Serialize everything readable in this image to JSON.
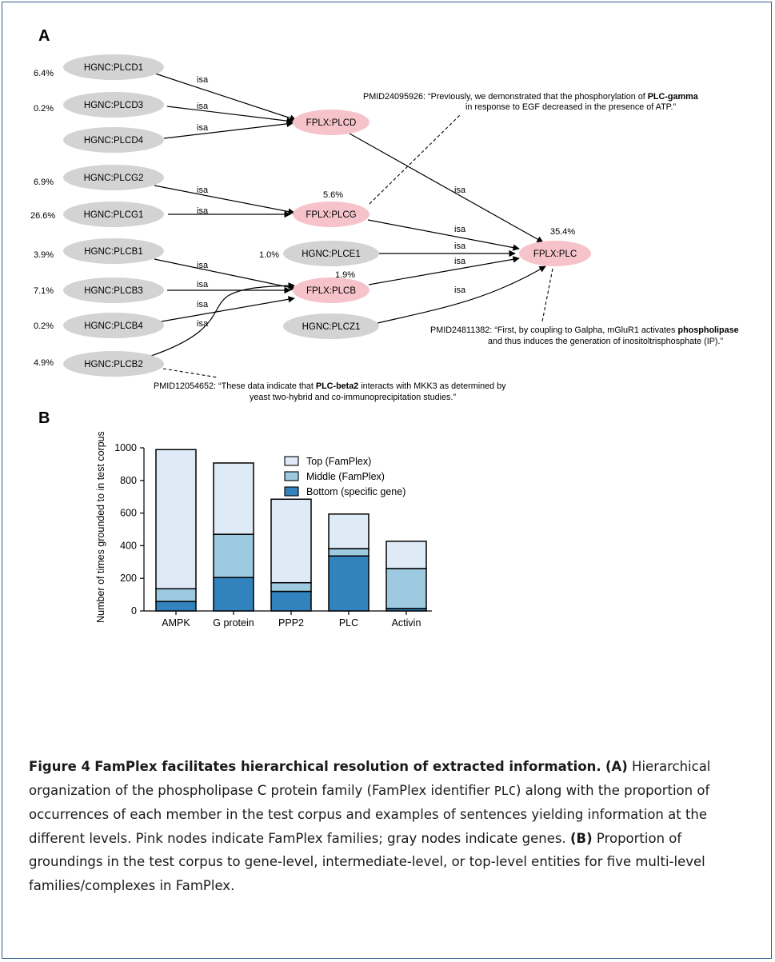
{
  "figure": {
    "panel_a_label": "A",
    "panel_b_label": "B"
  },
  "diagram": {
    "gene_nodes": [
      {
        "id": "plcd1",
        "label": "HGNC:PLCD1",
        "pct": "6.4%"
      },
      {
        "id": "plcd3",
        "label": "HGNC:PLCD3",
        "pct": "0.2%"
      },
      {
        "id": "plcd4",
        "label": "HGNC:PLCD4",
        "pct": ""
      },
      {
        "id": "plcg2",
        "label": "HGNC:PLCG2",
        "pct": "6.9%"
      },
      {
        "id": "plcg1",
        "label": "HGNC:PLCG1",
        "pct": "26.6%"
      },
      {
        "id": "plcb1",
        "label": "HGNC:PLCB1",
        "pct": "3.9%"
      },
      {
        "id": "plcb3",
        "label": "HGNC:PLCB3",
        "pct": "7.1%"
      },
      {
        "id": "plcb4",
        "label": "HGNC:PLCB4",
        "pct": "0.2%"
      },
      {
        "id": "plcb2",
        "label": "HGNC:PLCB2",
        "pct": "4.9%"
      },
      {
        "id": "plce1",
        "label": "HGNC:PLCE1",
        "pct": "1.0%"
      },
      {
        "id": "plcz1",
        "label": "HGNC:PLCZ1",
        "pct": ""
      }
    ],
    "family_nodes": [
      {
        "id": "plcd",
        "label": "FPLX:PLCD",
        "pct": ""
      },
      {
        "id": "plcg",
        "label": "FPLX:PLCG",
        "pct": "5.6%"
      },
      {
        "id": "plcb",
        "label": "FPLX:PLCB",
        "pct": "1.9%"
      },
      {
        "id": "plc",
        "label": "FPLX:PLC",
        "pct": "35.4%"
      }
    ],
    "edge_label": "isa",
    "quote1": {
      "line1_pre": "PMID24095926: “Previously, we demonstrated that the phosphorylation of ",
      "line1_bold": "PLC-gamma",
      "line2": "in response to EGF decreased in the presence of ATP.”"
    },
    "quote2": {
      "line1_pre": "PMID24811382: “First, by coupling to Galpha, mGluR1 activates ",
      "line1_bold": "phospholipase",
      "line2": "and thus induces the generation of inositoltrisphosphate (IP).”"
    },
    "quote3": {
      "line1_pre": "PMID12054652: “These data indicate that ",
      "line1_bold": "PLC-beta2",
      "line1_post": " interacts with MKK3 as determined by",
      "line2": "yeast two-hybrid and co-immunoprecipitation studies.”"
    },
    "colors": {
      "gene": "#d3d3d3",
      "family": "#f7c3cb"
    }
  },
  "chart_data": {
    "type": "bar",
    "stacked": true,
    "categories": [
      "AMPK",
      "G protein",
      "PPP2",
      "PLC",
      "Activin"
    ],
    "series": [
      {
        "name": "Bottom (specific gene)",
        "values": [
          58,
          205,
          120,
          337,
          15
        ],
        "color": "#3182bd"
      },
      {
        "name": "Middle (FamPlex)",
        "values": [
          78,
          265,
          53,
          45,
          245
        ],
        "color": "#9ecae1"
      },
      {
        "name": "Top (FamPlex)",
        "values": [
          853,
          437,
          512,
          212,
          167
        ],
        "color": "#deebf7"
      }
    ],
    "ylabel": "Number of times grounded to in test corpus",
    "xlabel": "",
    "ylim": [
      0,
      1000
    ],
    "yticks": [
      "0",
      "200",
      "400",
      "600",
      "800",
      "1000"
    ],
    "legend_order": [
      "Top (FamPlex)",
      "Middle (FamPlex)",
      "Bottom (specific gene)"
    ],
    "legend_position": "top-right",
    "grid": false
  },
  "caption": {
    "figure_label": "Figure 4",
    "title": "FamPlex facilitates hierarchical resolution of extracted information.",
    "a_label": "(A)",
    "a_text_1": "Hierarchical organization of the phospholipase C protein family (FamPlex identifier ",
    "a_code": "PLC",
    "a_text_2": ") along with the proportion of occurrences of each member in the test corpus and examples of sentences yielding information at the different levels. Pink nodes indicate FamPlex families; gray nodes indicate genes.",
    "b_label": "(B)",
    "b_text": "Proportion of groundings in the test corpus to gene-level, intermediate-level, or top-level entities for five multi-level families/complexes in FamPlex."
  }
}
